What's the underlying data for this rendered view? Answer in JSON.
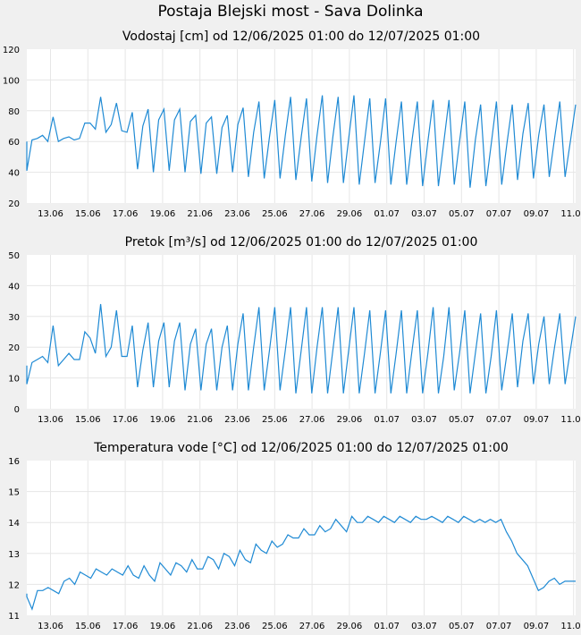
{
  "figure_title": "Postaja Blejski most - Sava Dolinka",
  "colors": {
    "line": "#1f8ad4",
    "grid": "#e6e6e6",
    "plot_bg": "#ffffff",
    "page_bg": "#f0f0f0"
  },
  "chart_data": [
    {
      "type": "line",
      "title": "Vodostaj [cm] od 12/06/2025 01:00 do 12/07/2025 01:00",
      "xlabel": "",
      "ylabel": "",
      "ylim": [
        20,
        120
      ],
      "yticks": [
        "20",
        "40",
        "60",
        "80",
        "100",
        "120"
      ],
      "xticks": [
        "13.06",
        "15.06",
        "17.06",
        "19.06",
        "21.06",
        "23.06",
        "25.06",
        "27.06",
        "29.06",
        "01.07",
        "03.07",
        "05.07",
        "07.07",
        "09.07",
        "11.07"
      ],
      "grid": true,
      "series": [
        {
          "values": [
            60,
            41,
            61,
            62,
            64,
            60,
            76,
            60,
            62,
            63,
            61,
            62,
            72,
            72,
            68,
            89,
            66,
            71,
            85,
            67,
            66,
            79,
            42,
            70,
            81,
            40,
            74,
            81,
            41,
            74,
            81,
            40,
            73,
            77,
            39,
            72,
            76,
            39,
            69,
            77,
            40,
            71,
            82,
            37,
            66,
            86,
            36,
            63,
            87,
            36,
            64,
            89,
            35,
            63,
            88,
            34,
            64,
            90,
            33,
            63,
            89,
            33,
            62,
            90,
            32,
            60,
            88,
            33,
            59,
            88,
            32,
            60,
            86,
            32,
            61,
            86,
            31,
            60,
            87,
            31,
            59,
            87,
            32,
            60,
            86,
            30,
            61,
            84,
            31,
            58,
            86,
            32,
            59,
            84,
            35,
            65,
            85,
            36,
            64,
            84,
            37,
            62,
            86,
            37,
            60,
            84
          ]
        }
      ]
    },
    {
      "type": "line",
      "title": "Pretok [m³/s] od 12/06/2025 01:00 do 12/07/2025 01:00",
      "xlabel": "",
      "ylabel": "",
      "ylim": [
        0,
        50
      ],
      "yticks": [
        "0",
        "10",
        "20",
        "30",
        "40",
        "50"
      ],
      "xticks": [
        "13.06",
        "15.06",
        "17.06",
        "19.06",
        "21.06",
        "23.06",
        "25.06",
        "27.06",
        "29.06",
        "01.07",
        "03.07",
        "05.07",
        "07.07",
        "09.07",
        "11.07"
      ],
      "grid": true,
      "series": [
        {
          "values": [
            14,
            8,
            15,
            16,
            17,
            15,
            27,
            14,
            16,
            18,
            16,
            16,
            25,
            23,
            18,
            34,
            17,
            20,
            32,
            17,
            17,
            27,
            7,
            19,
            28,
            7,
            22,
            28,
            7,
            22,
            28,
            6,
            21,
            26,
            6,
            21,
            26,
            6,
            20,
            27,
            6,
            21,
            31,
            6,
            20,
            33,
            6,
            19,
            33,
            6,
            19,
            33,
            5,
            19,
            33,
            5,
            20,
            33,
            5,
            19,
            33,
            5,
            19,
            33,
            5,
            18,
            32,
            5,
            18,
            32,
            5,
            18,
            32,
            5,
            19,
            32,
            5,
            18,
            33,
            5,
            17,
            33,
            6,
            18,
            32,
            5,
            18,
            31,
            5,
            17,
            32,
            6,
            18,
            31,
            7,
            22,
            31,
            8,
            21,
            30,
            8,
            20,
            31,
            8,
            19,
            30
          ]
        }
      ]
    },
    {
      "type": "line",
      "title": "Temperatura vode [°C] od 12/06/2025 01:00 do 12/07/2025 01:00",
      "xlabel": "",
      "ylabel": "",
      "ylim": [
        11,
        16
      ],
      "yticks": [
        "11",
        "12",
        "13",
        "14",
        "15",
        "16"
      ],
      "xticks": [
        "13.06",
        "15.06",
        "17.06",
        "19.06",
        "21.06",
        "23.06",
        "25.06",
        "27.06",
        "29.06",
        "01.07",
        "03.07",
        "05.07",
        "07.07",
        "09.07",
        "11.07"
      ],
      "grid": true,
      "series": [
        {
          "values": [
            11.7,
            11.6,
            11.2,
            11.8,
            11.8,
            11.9,
            11.8,
            11.7,
            12.1,
            12.2,
            12.0,
            12.4,
            12.3,
            12.2,
            12.5,
            12.4,
            12.3,
            12.5,
            12.4,
            12.3,
            12.6,
            12.3,
            12.2,
            12.6,
            12.3,
            12.1,
            12.7,
            12.5,
            12.3,
            12.7,
            12.6,
            12.4,
            12.8,
            12.5,
            12.5,
            12.9,
            12.8,
            12.5,
            13.0,
            12.9,
            12.6,
            13.1,
            12.8,
            12.7,
            13.3,
            13.1,
            13.0,
            13.4,
            13.2,
            13.3,
            13.6,
            13.5,
            13.5,
            13.8,
            13.6,
            13.6,
            13.9,
            13.7,
            13.8,
            14.1,
            13.9,
            13.7,
            14.2,
            14.0,
            14.0,
            14.2,
            14.1,
            14.0,
            14.2,
            14.1,
            14.0,
            14.2,
            14.1,
            14.0,
            14.2,
            14.1,
            14.1,
            14.2,
            14.1,
            14.0,
            14.2,
            14.1,
            14.0,
            14.2,
            14.1,
            14.0,
            14.1,
            14.0,
            14.1,
            14.0,
            14.1,
            13.7,
            13.4,
            13.0,
            12.8,
            12.6,
            12.2,
            11.8,
            11.9,
            12.1,
            12.2,
            12.0,
            12.1,
            12.1,
            12.1
          ]
        }
      ]
    }
  ]
}
